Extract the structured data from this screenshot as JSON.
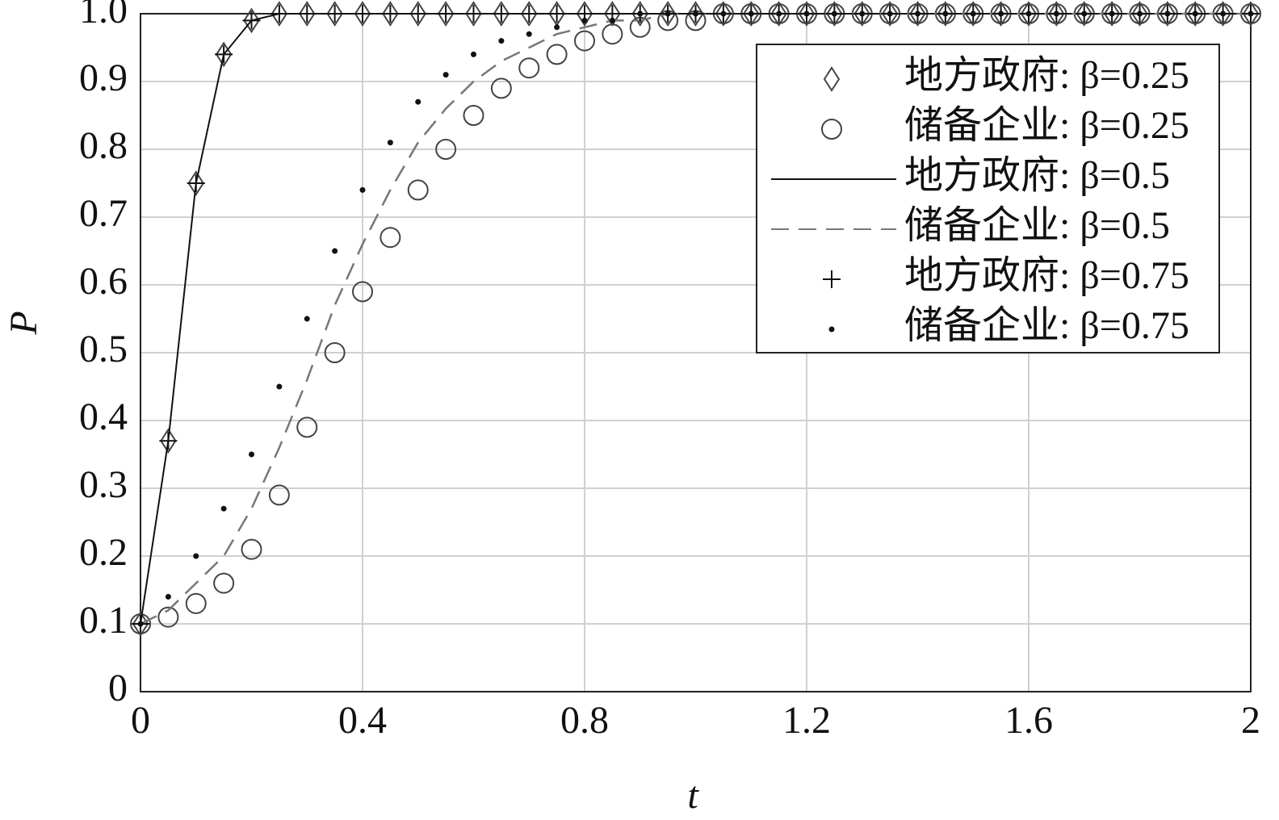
{
  "chart_data": {
    "type": "line",
    "xlabel": "t",
    "ylabel": "P",
    "x": [
      0,
      0.05,
      0.1,
      0.15,
      0.2,
      0.25,
      0.3,
      0.35,
      0.4,
      0.45,
      0.5,
      0.55,
      0.6,
      0.65,
      0.7,
      0.75,
      0.8,
      0.85,
      0.9,
      0.95,
      1.0,
      1.05,
      1.1,
      1.15,
      1.2,
      1.25,
      1.3,
      1.35,
      1.4,
      1.45,
      1.5,
      1.55,
      1.6,
      1.65,
      1.7,
      1.75,
      1.8,
      1.85,
      1.9,
      1.95,
      2.0
    ],
    "xlim": [
      0,
      2
    ],
    "xticks": [
      0,
      0.4,
      0.8,
      1.2,
      1.6,
      2
    ],
    "ylim": [
      0,
      1
    ],
    "yticks": [
      0,
      0.1,
      0.2,
      0.3,
      0.4,
      0.5,
      0.6,
      0.7,
      0.8,
      0.9,
      {
        "value": 1,
        "label": "1.0"
      }
    ],
    "grid": true,
    "legend": "upper right",
    "series": [
      {
        "name": "地方政府: β=0.25",
        "marker": "diamond",
        "color": "#444444",
        "values": [
          0.1,
          0.37,
          0.75,
          0.94,
          0.99,
          1,
          1,
          1,
          1,
          1,
          1,
          1,
          1,
          1,
          1,
          1,
          1,
          1,
          1,
          1,
          1,
          1,
          1,
          1,
          1,
          1,
          1,
          1,
          1,
          1,
          1,
          1,
          1,
          1,
          1,
          1,
          1,
          1,
          1,
          1,
          1
        ]
      },
      {
        "name": "储备企业: β=0.25",
        "marker": "circle",
        "color": "#444444",
        "values": [
          0.1,
          0.11,
          0.13,
          0.16,
          0.21,
          0.29,
          0.39,
          0.5,
          0.59,
          0.67,
          0.74,
          0.8,
          0.85,
          0.89,
          0.92,
          0.94,
          0.96,
          0.97,
          0.98,
          0.99,
          0.99,
          1,
          1,
          1,
          1,
          1,
          1,
          1,
          1,
          1,
          1,
          1,
          1,
          1,
          1,
          1,
          1,
          1,
          1,
          1,
          1
        ]
      },
      {
        "name": "地方政府: β=0.5",
        "marker": "line",
        "color": "#111111",
        "values": [
          0.1,
          0.37,
          0.75,
          0.94,
          0.99,
          1,
          1,
          1,
          1,
          1,
          1,
          1,
          1,
          1,
          1,
          1,
          1,
          1,
          1,
          1,
          1,
          1,
          1,
          1,
          1,
          1,
          1,
          1,
          1,
          1,
          1,
          1,
          1,
          1,
          1,
          1,
          1,
          1,
          1,
          1,
          1
        ]
      },
      {
        "name": "储备企业: β=0.5",
        "marker": "dashed",
        "color": "#777777",
        "values": [
          0.1,
          0.12,
          0.16,
          0.2,
          0.27,
          0.36,
          0.46,
          0.57,
          0.66,
          0.74,
          0.81,
          0.86,
          0.9,
          0.93,
          0.95,
          0.97,
          0.98,
          0.99,
          0.99,
          1,
          1,
          1,
          1,
          1,
          1,
          1,
          1,
          1,
          1,
          1,
          1,
          1,
          1,
          1,
          1,
          1,
          1,
          1,
          1,
          1,
          1
        ]
      },
      {
        "name": "地方政府: β=0.75",
        "marker": "plus",
        "color": "#111111",
        "values": [
          0.1,
          0.37,
          0.75,
          0.94,
          0.99,
          1,
          1,
          1,
          1,
          1,
          1,
          1,
          1,
          1,
          1,
          1,
          1,
          1,
          1,
          1,
          1,
          1,
          1,
          1,
          1,
          1,
          1,
          1,
          1,
          1,
          1,
          1,
          1,
          1,
          1,
          1,
          1,
          1,
          1,
          1,
          1
        ]
      },
      {
        "name": "储备企业: β=0.75",
        "marker": "dot",
        "color": "#111111",
        "values": [
          0.1,
          0.14,
          0.2,
          0.27,
          0.35,
          0.45,
          0.55,
          0.65,
          0.74,
          0.81,
          0.87,
          0.91,
          0.94,
          0.96,
          0.97,
          0.98,
          0.99,
          0.99,
          1,
          1,
          1,
          1,
          1,
          1,
          1,
          1,
          1,
          1,
          1,
          1,
          1,
          1,
          1,
          1,
          1,
          1,
          1,
          1,
          1,
          1,
          1
        ]
      }
    ]
  }
}
